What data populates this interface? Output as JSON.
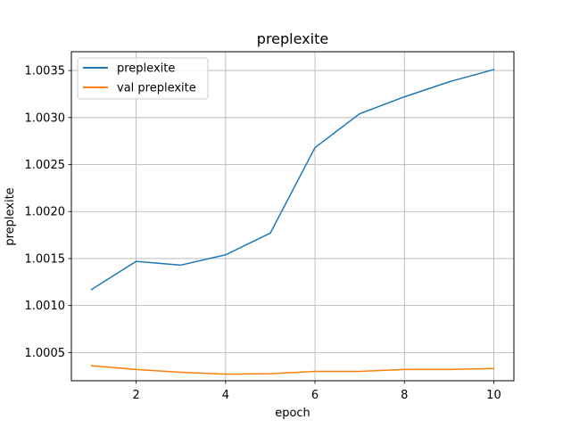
{
  "chart_data": {
    "type": "line",
    "title": "preplexite",
    "xlabel": "epoch",
    "ylabel": "preplexite",
    "xlim": [
      0.55,
      10.45
    ],
    "ylim": [
      1.0002,
      1.0037
    ],
    "xticks": [
      2,
      4,
      6,
      8,
      10
    ],
    "yticks": [
      1.0005,
      1.001,
      1.0015,
      1.002,
      1.0025,
      1.003,
      1.0035
    ],
    "ytick_labels": [
      "1.0005",
      "1.0010",
      "1.0015",
      "1.0020",
      "1.0025",
      "1.0030",
      "1.0035"
    ],
    "grid": true,
    "legend_position": "upper left",
    "x": [
      1,
      2,
      3,
      4,
      5,
      6,
      7,
      8,
      9,
      10
    ],
    "series": [
      {
        "name": "preplexite",
        "color": "#1f77b4",
        "values": [
          1.00117,
          1.00147,
          1.00143,
          1.00154,
          1.00177,
          1.00268,
          1.00304,
          1.00322,
          1.00338,
          1.00351
        ]
      },
      {
        "name": "val preplexite",
        "color": "#ff7f0e",
        "values": [
          1.00036,
          1.00032,
          1.00029,
          1.00027,
          1.000275,
          1.0003,
          1.0003,
          1.00032,
          1.00032,
          1.00033
        ]
      }
    ]
  }
}
